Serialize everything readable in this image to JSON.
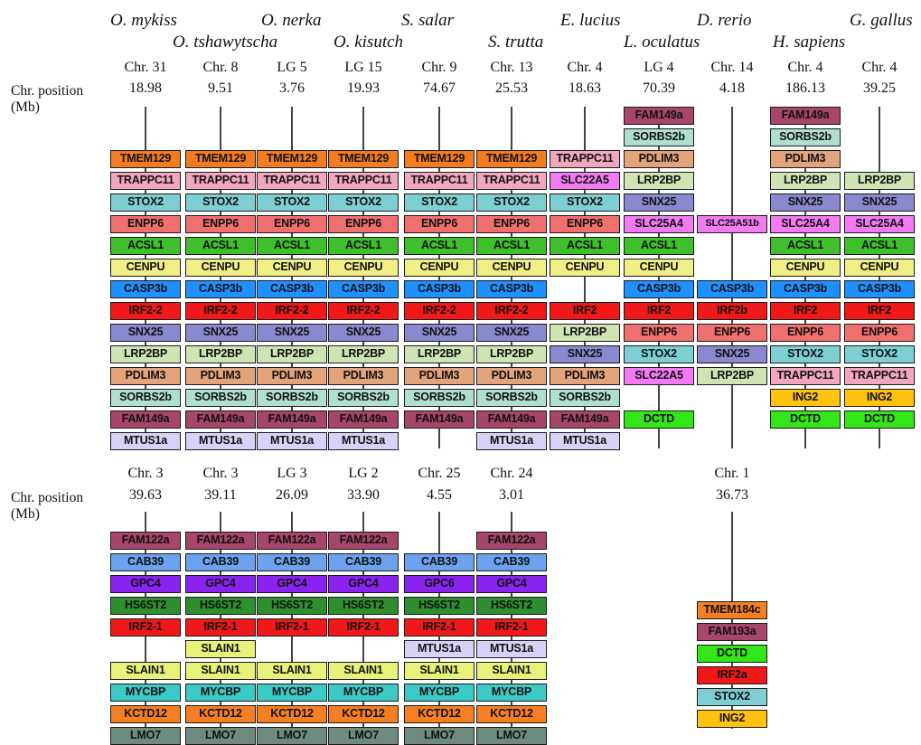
{
  "colors": {
    "TMEM129": "#f47c20",
    "TRAPPC11": "#f2a7bf",
    "STOX2": "#7ecfd4",
    "ENPP6": "#f07070",
    "ACSL1": "#3fbf2b",
    "CENPU": "#f0ef86",
    "CASP3b": "#1e90ff",
    "IRF2": "#f01818",
    "SNX25": "#8a89cf",
    "LRP2BP": "#cfe3b5",
    "PDLIM3": "#e3a47c",
    "SORBS2b": "#b0dfd2",
    "FAM149a": "#a8456a",
    "MTUS1a": "#d8d2f8",
    "SLC22A5": "#f27af2",
    "SLC25A4": "#f27af2",
    "DCTD": "#33e617",
    "ING2": "#ffc20e",
    "FAM122a": "#a8456a",
    "CAB39": "#6da2ef",
    "GPC4": "#8a22f0",
    "HS6ST2": "#2f8f2f",
    "SLAIN1": "#e6f27a",
    "MYCBP": "#3ccac6",
    "KCTD12": "#f57f22",
    "LMO7": "#6e8b80",
    "TMEM184c": "#f57f22",
    "FAM193a": "#a8456a"
  },
  "row_header_label": [
    "Chr. position",
    "(Mb)"
  ],
  "top_panel": {
    "species": [
      {
        "name": "O. mykiss",
        "row": 1
      },
      {
        "name": "O. tshawytscha",
        "row": 2
      },
      {
        "name": "O. nerka",
        "row": 1
      },
      {
        "name": "O. kisutch",
        "row": 2
      },
      {
        "name": "S. salar",
        "row": 1
      },
      {
        "name": "S. trutta",
        "row": 2
      },
      {
        "name": "E. lucius",
        "row": 1
      },
      {
        "name": "L. oculatus",
        "row": 2
      },
      {
        "name": "D. rerio",
        "row": 1
      },
      {
        "name": "H. sapiens",
        "row": 2
      },
      {
        "name": "G. gallus",
        "row": 1
      }
    ],
    "columns": [
      {
        "chr": "Chr. 31",
        "pos": "18.98",
        "genes": [
          {
            "l": "TMEM129",
            "c": "TMEM129"
          },
          {
            "l": "TRAPPC11",
            "c": "TRAPPC11"
          },
          {
            "l": "STOX2",
            "c": "STOX2"
          },
          {
            "l": "ENPP6",
            "c": "ENPP6"
          },
          {
            "l": "ACSL1",
            "c": "ACSL1"
          },
          {
            "l": "CENPU",
            "c": "CENPU"
          },
          {
            "l": "CASP3b",
            "c": "CASP3b"
          },
          {
            "l": "IRF2-2",
            "c": "IRF2"
          },
          {
            "l": "SNX25",
            "c": "SNX25"
          },
          {
            "l": "LRP2BP",
            "c": "LRP2BP"
          },
          {
            "l": "PDLIM3",
            "c": "PDLIM3"
          },
          {
            "l": "SORBS2b",
            "c": "SORBS2b"
          },
          {
            "l": "FAM149a",
            "c": "FAM149a"
          },
          {
            "l": "MTUS1a",
            "c": "MTUS1a"
          }
        ]
      },
      {
        "chr": "Chr. 8",
        "pos": "9.51",
        "genes": [
          {
            "l": "TMEM129",
            "c": "TMEM129"
          },
          {
            "l": "TRAPPC11",
            "c": "TRAPPC11"
          },
          {
            "l": "STOX2",
            "c": "STOX2"
          },
          {
            "l": "ENPP6",
            "c": "ENPP6"
          },
          {
            "l": "ACSL1",
            "c": "ACSL1"
          },
          {
            "l": "CENPU",
            "c": "CENPU"
          },
          {
            "l": "CASP3b",
            "c": "CASP3b"
          },
          {
            "l": "IRF2-2",
            "c": "IRF2"
          },
          {
            "l": "SNX25",
            "c": "SNX25"
          },
          {
            "l": "LRP2BP",
            "c": "LRP2BP"
          },
          {
            "l": "PDLIM3",
            "c": "PDLIM3"
          },
          {
            "l": "SORBS2b",
            "c": "SORBS2b"
          },
          {
            "l": "FAM149a",
            "c": "FAM149a"
          },
          {
            "l": "MTUS1a",
            "c": "MTUS1a"
          }
        ]
      },
      {
        "chr": "LG 5",
        "pos": "3.76",
        "genes": [
          {
            "l": "TMEM129",
            "c": "TMEM129"
          },
          {
            "l": "TRAPPC11",
            "c": "TRAPPC11"
          },
          {
            "l": "STOX2",
            "c": "STOX2"
          },
          {
            "l": "ENPP6",
            "c": "ENPP6"
          },
          {
            "l": "ACSL1",
            "c": "ACSL1"
          },
          {
            "l": "CENPU",
            "c": "CENPU"
          },
          {
            "l": "CASP3b",
            "c": "CASP3b"
          },
          {
            "l": "IRF2-2",
            "c": "IRF2"
          },
          {
            "l": "SNX25",
            "c": "SNX25"
          },
          {
            "l": "LRP2BP",
            "c": "LRP2BP"
          },
          {
            "l": "PDLIM3",
            "c": "PDLIM3"
          },
          {
            "l": "SORBS2b",
            "c": "SORBS2b"
          },
          {
            "l": "FAM149a",
            "c": "FAM149a"
          },
          {
            "l": "MTUS1a",
            "c": "MTUS1a"
          }
        ]
      },
      {
        "chr": "LG 15",
        "pos": "19.93",
        "genes": [
          {
            "l": "TMEM129",
            "c": "TMEM129"
          },
          {
            "l": "TRAPPC11",
            "c": "TRAPPC11"
          },
          {
            "l": "STOX2",
            "c": "STOX2"
          },
          {
            "l": "ENPP6",
            "c": "ENPP6"
          },
          {
            "l": "ACSL1",
            "c": "ACSL1"
          },
          {
            "l": "CENPU",
            "c": "CENPU"
          },
          {
            "l": "CASP3b",
            "c": "CASP3b"
          },
          {
            "l": "IRF2-2",
            "c": "IRF2"
          },
          {
            "l": "SNX25",
            "c": "SNX25"
          },
          {
            "l": "LRP2BP",
            "c": "LRP2BP"
          },
          {
            "l": "PDLIM3",
            "c": "PDLIM3"
          },
          {
            "l": "SORBS2b",
            "c": "SORBS2b"
          },
          {
            "l": "FAM149a",
            "c": "FAM149a"
          },
          {
            "l": "MTUS1a",
            "c": "MTUS1a"
          }
        ]
      },
      {
        "chr": "Chr. 9",
        "pos": "74.67",
        "genes": [
          {
            "l": "TMEM129",
            "c": "TMEM129"
          },
          {
            "l": "TRAPPC11",
            "c": "TRAPPC11"
          },
          {
            "l": "STOX2",
            "c": "STOX2"
          },
          {
            "l": "ENPP6",
            "c": "ENPP6"
          },
          {
            "l": "ACSL1",
            "c": "ACSL1"
          },
          {
            "l": "CENPU",
            "c": "CENPU"
          },
          {
            "l": "CASP3b",
            "c": "CASP3b"
          },
          {
            "l": "IRF2-2",
            "c": "IRF2"
          },
          {
            "l": "SNX25",
            "c": "SNX25"
          },
          {
            "l": "LRP2BP",
            "c": "LRP2BP"
          },
          {
            "l": "PDLIM3",
            "c": "PDLIM3"
          },
          {
            "l": "SORBS2b",
            "c": "SORBS2b"
          },
          {
            "l": "FAM149a",
            "c": "FAM149a"
          },
          null
        ]
      },
      {
        "chr": "Chr. 13",
        "pos": "25.53",
        "genes": [
          {
            "l": "TMEM129",
            "c": "TMEM129"
          },
          {
            "l": "TRAPPC11",
            "c": "TRAPPC11"
          },
          {
            "l": "STOX2",
            "c": "STOX2"
          },
          {
            "l": "ENPP6",
            "c": "ENPP6"
          },
          {
            "l": "ACSL1",
            "c": "ACSL1"
          },
          {
            "l": "CENPU",
            "c": "CENPU"
          },
          {
            "l": "CASP3b",
            "c": "CASP3b"
          },
          {
            "l": "IRF2-2",
            "c": "IRF2"
          },
          {
            "l": "SNX25",
            "c": "SNX25"
          },
          {
            "l": "LRP2BP",
            "c": "LRP2BP"
          },
          {
            "l": "PDLIM3",
            "c": "PDLIM3"
          },
          {
            "l": "SORBS2b",
            "c": "SORBS2b"
          },
          {
            "l": "FAM149a",
            "c": "FAM149a"
          },
          {
            "l": "MTUS1a",
            "c": "MTUS1a"
          }
        ]
      },
      {
        "chr": "Chr. 4",
        "pos": "18.63",
        "genes": [
          {
            "l": "TRAPPC11",
            "c": "TRAPPC11"
          },
          {
            "l": "SLC22A5",
            "c": "SLC22A5"
          },
          {
            "l": "STOX2",
            "c": "STOX2"
          },
          {
            "l": "ENPP6",
            "c": "ENPP6"
          },
          {
            "l": "ACSL1",
            "c": "ACSL1"
          },
          {
            "l": "CENPU",
            "c": "CENPU"
          },
          null,
          {
            "l": "IRF2",
            "c": "IRF2"
          },
          {
            "l": "LRP2BP",
            "c": "LRP2BP"
          },
          {
            "l": "SNX25",
            "c": "SNX25"
          },
          {
            "l": "PDLIM3",
            "c": "PDLIM3"
          },
          {
            "l": "SORBS2b",
            "c": "SORBS2b"
          },
          {
            "l": "FAM149a",
            "c": "FAM149a"
          },
          {
            "l": "MTUS1a",
            "c": "MTUS1a"
          }
        ]
      },
      {
        "chr": "LG 4",
        "pos": "70.39",
        "genes": [
          {
            "l": "FAM149a",
            "c": "FAM149a"
          },
          {
            "l": "SORBS2b",
            "c": "SORBS2b"
          },
          {
            "l": "PDLIM3",
            "c": "PDLIM3"
          },
          {
            "l": "LRP2BP",
            "c": "LRP2BP"
          },
          {
            "l": "SNX25",
            "c": "SNX25"
          },
          {
            "l": "SLC25A4",
            "c": "SLC25A4"
          },
          {
            "l": "ACSL1",
            "c": "ACSL1"
          },
          {
            "l": "CENPU",
            "c": "CENPU"
          },
          {
            "l": "CASP3b",
            "c": "CASP3b"
          },
          {
            "l": "IRF2",
            "c": "IRF2"
          },
          {
            "l": "ENPP6",
            "c": "ENPP6"
          },
          {
            "l": "STOX2",
            "c": "STOX2"
          },
          {
            "l": "SLC22A5",
            "c": "SLC22A5"
          },
          null,
          {
            "l": "DCTD",
            "c": "DCTD"
          }
        ]
      },
      {
        "chr": "Chr. 14",
        "pos": "4.18",
        "genes": [
          null,
          null,
          null,
          null,
          null,
          {
            "l": "SLC25A51b",
            "c": "SLC25A4"
          },
          null,
          null,
          {
            "l": "CASP3b",
            "c": "CASP3b"
          },
          {
            "l": "IRF2b",
            "c": "IRF2"
          },
          {
            "l": "ENPP6",
            "c": "ENPP6"
          },
          {
            "l": "SNX25",
            "c": "SNX25"
          },
          {
            "l": "LRP2BP",
            "c": "LRP2BP"
          }
        ]
      },
      {
        "chr": "Chr. 4",
        "pos": "186.13",
        "genes": [
          {
            "l": "FAM149a",
            "c": "FAM149a"
          },
          {
            "l": "SORBS2b",
            "c": "SORBS2b"
          },
          {
            "l": "PDLIM3",
            "c": "PDLIM3"
          },
          {
            "l": "LRP2BP",
            "c": "LRP2BP"
          },
          {
            "l": "SNX25",
            "c": "SNX25"
          },
          {
            "l": "SLC25A4",
            "c": "SLC25A4"
          },
          {
            "l": "ACSL1",
            "c": "ACSL1"
          },
          {
            "l": "CENPU",
            "c": "CENPU"
          },
          {
            "l": "CASP3b",
            "c": "CASP3b"
          },
          {
            "l": "IRF2",
            "c": "IRF2"
          },
          {
            "l": "ENPP6",
            "c": "ENPP6"
          },
          {
            "l": "STOX2",
            "c": "STOX2"
          },
          {
            "l": "TRAPPC11",
            "c": "TRAPPC11"
          },
          {
            "l": "ING2",
            "c": "ING2"
          },
          {
            "l": "DCTD",
            "c": "DCTD"
          }
        ]
      },
      {
        "chr": "Chr. 4",
        "pos": "39.25",
        "genes": [
          null,
          null,
          null,
          {
            "l": "LRP2BP",
            "c": "LRP2BP"
          },
          {
            "l": "SNX25",
            "c": "SNX25"
          },
          {
            "l": "SLC25A4",
            "c": "SLC25A4"
          },
          {
            "l": "ACSL1",
            "c": "ACSL1"
          },
          {
            "l": "CENPU",
            "c": "CENPU"
          },
          {
            "l": "CASP3b",
            "c": "CASP3b"
          },
          {
            "l": "IRF2",
            "c": "IRF2"
          },
          {
            "l": "ENPP6",
            "c": "ENPP6"
          },
          {
            "l": "STOX2",
            "c": "STOX2"
          },
          {
            "l": "TRAPPC11",
            "c": "TRAPPC11"
          },
          {
            "l": "ING2",
            "c": "ING2"
          },
          {
            "l": "DCTD",
            "c": "DCTD"
          }
        ]
      }
    ]
  },
  "bottom_panel": {
    "columns": [
      {
        "chr": "Chr. 3",
        "pos": "39.63",
        "genes": [
          {
            "l": "FAM122a",
            "c": "FAM122a"
          },
          {
            "l": "CAB39",
            "c": "CAB39"
          },
          {
            "l": "GPC4",
            "c": "GPC4"
          },
          {
            "l": "HS6ST2",
            "c": "HS6ST2"
          },
          {
            "l": "IRF2-1",
            "c": "IRF2"
          },
          null,
          {
            "l": "SLAIN1",
            "c": "SLAIN1"
          },
          {
            "l": "MYCBP",
            "c": "MYCBP"
          },
          {
            "l": "KCTD12",
            "c": "KCTD12"
          },
          {
            "l": "LMO7",
            "c": "LMO7"
          }
        ]
      },
      {
        "chr": "Chr. 3",
        "pos": "39.11",
        "genes": [
          {
            "l": "FAM122a",
            "c": "FAM122a"
          },
          {
            "l": "CAB39",
            "c": "CAB39"
          },
          {
            "l": "GPC4",
            "c": "GPC4"
          },
          {
            "l": "HS6ST2",
            "c": "HS6ST2"
          },
          {
            "l": "IRF2-1",
            "c": "IRF2"
          },
          {
            "l": "SLAIN1",
            "c": "SLAIN1"
          },
          {
            "l": "SLAIN1",
            "c": "SLAIN1"
          },
          {
            "l": "MYCBP",
            "c": "MYCBP"
          },
          {
            "l": "KCTD12",
            "c": "KCTD12"
          },
          {
            "l": "LMO7",
            "c": "LMO7"
          }
        ]
      },
      {
        "chr": "LG 3",
        "pos": "26.09",
        "genes": [
          {
            "l": "FAM122a",
            "c": "FAM122a"
          },
          {
            "l": "CAB39",
            "c": "CAB39"
          },
          {
            "l": "GPC4",
            "c": "GPC4"
          },
          {
            "l": "HS6ST2",
            "c": "HS6ST2"
          },
          {
            "l": "IRF2-1",
            "c": "IRF2"
          },
          null,
          {
            "l": "SLAIN1",
            "c": "SLAIN1"
          },
          {
            "l": "MYCBP",
            "c": "MYCBP"
          },
          {
            "l": "KCTD12",
            "c": "KCTD12"
          },
          {
            "l": "LMO7",
            "c": "LMO7"
          }
        ]
      },
      {
        "chr": "LG 2",
        "pos": "33.90",
        "genes": [
          {
            "l": "FAM122a",
            "c": "FAM122a"
          },
          {
            "l": "CAB39",
            "c": "CAB39"
          },
          {
            "l": "GPC4",
            "c": "GPC4"
          },
          {
            "l": "HS6ST2",
            "c": "HS6ST2"
          },
          {
            "l": "IRF2-1",
            "c": "IRF2"
          },
          null,
          {
            "l": "SLAIN1",
            "c": "SLAIN1"
          },
          {
            "l": "MYCBP",
            "c": "MYCBP"
          },
          {
            "l": "KCTD12",
            "c": "KCTD12"
          },
          {
            "l": "LMO7",
            "c": "LMO7"
          }
        ]
      },
      {
        "chr": "Chr. 25",
        "pos": "4.55",
        "genes": [
          null,
          {
            "l": "CAB39",
            "c": "CAB39"
          },
          {
            "l": "GPC6",
            "c": "GPC4"
          },
          {
            "l": "HS6ST2",
            "c": "HS6ST2"
          },
          {
            "l": "IRF2-1",
            "c": "IRF2"
          },
          {
            "l": "MTUS1a",
            "c": "MTUS1a"
          },
          {
            "l": "SLAIN1",
            "c": "SLAIN1"
          },
          {
            "l": "MYCBP",
            "c": "MYCBP"
          },
          {
            "l": "KCTD12",
            "c": "KCTD12"
          },
          {
            "l": "LMO7",
            "c": "LMO7"
          }
        ]
      },
      {
        "chr": "Chr. 24",
        "pos": "3.01",
        "genes": [
          {
            "l": "FAM122a",
            "c": "FAM122a"
          },
          {
            "l": "CAB39",
            "c": "CAB39"
          },
          {
            "l": "GPC4",
            "c": "GPC4"
          },
          {
            "l": "HS6ST2",
            "c": "HS6ST2"
          },
          {
            "l": "IRF2-1",
            "c": "IRF2"
          },
          {
            "l": "MTUS1a",
            "c": "MTUS1a"
          },
          {
            "l": "SLAIN1",
            "c": "SLAIN1"
          },
          {
            "l": "MYCBP",
            "c": "MYCBP"
          },
          {
            "l": "KCTD12",
            "c": "KCTD12"
          },
          {
            "l": "LMO7",
            "c": "LMO7"
          }
        ]
      },
      {
        "chr": "Chr. 1",
        "pos": "36.73",
        "genes": [
          {
            "l": "TMEM184c",
            "c": "TMEM184c"
          },
          {
            "l": "FAM193a",
            "c": "FAM193a"
          },
          {
            "l": "DCTD",
            "c": "DCTD"
          },
          {
            "l": "IRF2a",
            "c": "IRF2"
          },
          {
            "l": "STOX2",
            "c": "STOX2"
          },
          {
            "l": "ING2",
            "c": "ING2"
          }
        ]
      }
    ]
  }
}
